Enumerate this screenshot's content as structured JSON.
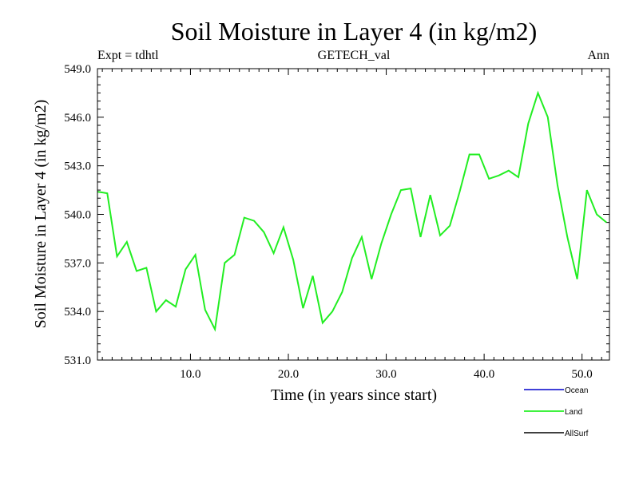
{
  "chart_data": {
    "type": "line",
    "title": "Soil Moisture in Layer 4 (in kg/m2)",
    "subtitle_left": "Expt = tdhtl",
    "subtitle_center": "GETECH_val",
    "subtitle_right": "Ann",
    "xlabel": "Time (in years since start)",
    "ylabel": "Soil Moisture in Layer 4 (in kg/m2)",
    "xlim": [
      0.5,
      52.8
    ],
    "ylim": [
      531.0,
      549.0
    ],
    "xticks": [
      10,
      20,
      30,
      40,
      50
    ],
    "xtick_labels": [
      "10.0",
      "20.0",
      "30.0",
      "40.0",
      "50.0"
    ],
    "yticks": [
      531,
      534,
      537,
      540,
      543,
      546,
      549
    ],
    "ytick_labels": [
      "531.0",
      "534.0",
      "537.0",
      "540.0",
      "543.0",
      "546.0",
      "549.0"
    ],
    "legend": [
      {
        "name": "Ocean",
        "color": "#0000cc"
      },
      {
        "name": "Land",
        "color": "#00ee00"
      },
      {
        "name": "AllSurf",
        "color": "#000000"
      }
    ],
    "series": [
      {
        "name": "Land",
        "color": "#22ee22",
        "x": [
          0.5,
          1.5,
          2.5,
          3.5,
          4.5,
          5.5,
          6.5,
          7.5,
          8.5,
          9.5,
          10.5,
          11.5,
          12.5,
          13.5,
          14.5,
          15.5,
          16.5,
          17.5,
          18.5,
          19.5,
          20.5,
          21.5,
          22.5,
          23.5,
          24.5,
          25.5,
          26.5,
          27.5,
          28.5,
          29.5,
          30.5,
          31.5,
          32.5,
          33.5,
          34.5,
          35.5,
          36.5,
          37.5,
          38.5,
          39.5,
          40.5,
          41.5,
          42.5,
          43.5,
          44.5,
          45.5,
          46.5,
          47.5,
          48.5,
          49.5,
          50.5,
          51.5,
          52.5
        ],
        "values": [
          541.4,
          541.3,
          537.4,
          538.3,
          536.5,
          536.7,
          534.0,
          534.7,
          534.3,
          536.6,
          537.5,
          534.1,
          532.9,
          537.0,
          537.5,
          539.8,
          539.6,
          538.9,
          537.6,
          539.2,
          537.2,
          534.2,
          536.2,
          533.3,
          534.0,
          535.2,
          537.3,
          538.6,
          536.0,
          538.2,
          540.0,
          541.5,
          541.6,
          538.6,
          541.2,
          538.7,
          539.3,
          541.4,
          543.7,
          543.7,
          542.2,
          542.4,
          542.7,
          542.3,
          545.6,
          547.5,
          546.0,
          541.8,
          538.6,
          536.0,
          541.5,
          540.0,
          539.5
        ]
      }
    ]
  }
}
